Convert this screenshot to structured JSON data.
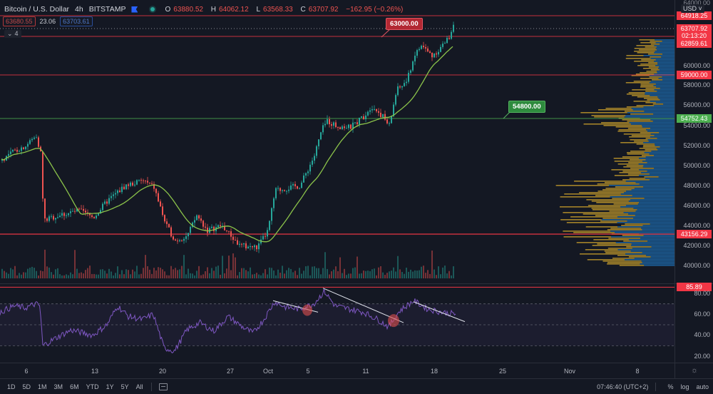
{
  "header": {
    "symbol": "Bitcoin / U.S. Dollar",
    "interval": "4h",
    "exchange": "BITSTAMP",
    "ohlc": {
      "open_label": "O",
      "open": "63880.52",
      "high_label": "H",
      "high": "64062.12",
      "low_label": "L",
      "low": "63568.33",
      "close_label": "C",
      "close": "63707.92",
      "change": "−162.95 (−0.26%)"
    },
    "bid": "63680.55",
    "spread": "23.06",
    "ask": "63703.61",
    "indicators_collapsed_count": "4"
  },
  "price_scale": {
    "currency_button": "USD ˅",
    "ticks": [
      "60000.00",
      "58000.00",
      "56000.00",
      "54000.00",
      "52000.00",
      "50000.00",
      "48000.00",
      "46000.00",
      "44000.00",
      "42000.00",
      "40000.00"
    ],
    "tags": {
      "level_64918": "64918.25",
      "last_price": "63707.92",
      "countdown": "02:13:20",
      "level_62859": "62859.61",
      "level_59000": "59000.00",
      "level_54752": "54752.43",
      "level_43156": "43156.29"
    }
  },
  "rsi_scale": {
    "ticks": [
      "80.00",
      "60.00",
      "40.00",
      "20.00"
    ],
    "tag": "85.89"
  },
  "annotations": {
    "callout_red": "63000.00",
    "callout_green": "54800.00"
  },
  "time_axis": {
    "labels": [
      "6",
      "13",
      "20",
      "27",
      "Oct",
      "5",
      "11",
      "18",
      "25",
      "Nov",
      "8"
    ]
  },
  "toolbar": {
    "ranges": [
      "1D",
      "5D",
      "1M",
      "3M",
      "6M",
      "YTD",
      "1Y",
      "5Y",
      "All"
    ],
    "clock": "07:46:40 (UTC+2)",
    "percent": "%",
    "log": "log",
    "auto": "auto"
  },
  "colors": {
    "up": "#26a69a",
    "down": "#ef5350",
    "ma": "#8bc34a",
    "rsi": "#7e57c2",
    "hline_red": "#f23645",
    "hline_green": "#4caf50",
    "vp_up": "#2196f3",
    "vp_down": "#d4a72c"
  }
}
